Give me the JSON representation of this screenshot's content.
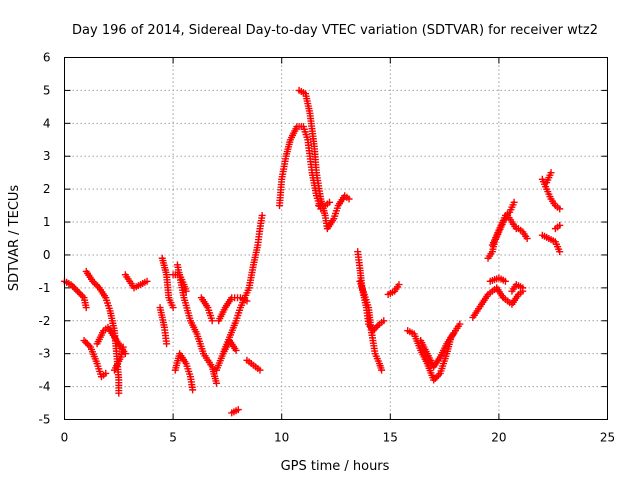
{
  "chart_data": {
    "type": "scatter",
    "title": "Day 196 of 2014, Sidereal Day-to-day VTEC variation (SDTVAR) for receiver wtz2",
    "xlabel": "GPS time / hours",
    "ylabel": "SDTVAR / TECUs",
    "xlim": [
      0,
      25
    ],
    "ylim": [
      -5,
      6
    ],
    "xticks": [
      0,
      5,
      10,
      15,
      20,
      25
    ],
    "yticks": [
      -5,
      -4,
      -3,
      -2,
      -1,
      0,
      1,
      2,
      3,
      4,
      5,
      6
    ],
    "grid": true,
    "marker": "plus",
    "series": [
      {
        "name": "SDTVAR",
        "color": "#ff0000",
        "segments": [
          [
            [
              0.0,
              -0.8
            ],
            [
              0.3,
              -0.9
            ],
            [
              0.6,
              -1.1
            ],
            [
              0.9,
              -1.3
            ],
            [
              1.0,
              -1.6
            ]
          ],
          [
            [
              0.9,
              -2.6
            ],
            [
              1.2,
              -2.8
            ],
            [
              1.5,
              -3.3
            ],
            [
              1.7,
              -3.7
            ],
            [
              1.9,
              -3.6
            ]
          ],
          [
            [
              1.0,
              -0.5
            ],
            [
              1.3,
              -0.8
            ],
            [
              1.6,
              -1.0
            ],
            [
              1.9,
              -1.3
            ],
            [
              2.1,
              -1.7
            ],
            [
              2.3,
              -2.3
            ],
            [
              2.4,
              -3.0
            ],
            [
              2.5,
              -3.8
            ],
            [
              2.5,
              -4.2
            ]
          ],
          [
            [
              1.5,
              -2.7
            ],
            [
              1.8,
              -2.3
            ],
            [
              2.0,
              -2.2
            ],
            [
              2.3,
              -2.5
            ],
            [
              2.6,
              -2.8
            ],
            [
              2.8,
              -3.0
            ]
          ],
          [
            [
              2.3,
              -3.5
            ],
            [
              2.6,
              -3.1
            ],
            [
              2.7,
              -2.8
            ]
          ],
          [
            [
              2.8,
              -0.6
            ],
            [
              3.0,
              -0.8
            ],
            [
              3.2,
              -1.0
            ],
            [
              3.5,
              -0.9
            ],
            [
              3.8,
              -0.8
            ]
          ],
          [
            [
              4.4,
              -1.6
            ],
            [
              4.6,
              -2.2
            ],
            [
              4.7,
              -2.7
            ]
          ],
          [
            [
              4.5,
              -0.1
            ],
            [
              4.7,
              -0.6
            ],
            [
              4.8,
              -1.3
            ],
            [
              5.0,
              -1.6
            ]
          ],
          [
            [
              5.0,
              -0.6
            ],
            [
              5.3,
              -0.6
            ],
            [
              5.5,
              -0.9
            ],
            [
              5.6,
              -1.1
            ]
          ],
          [
            [
              5.2,
              -0.3
            ],
            [
              5.5,
              -1.3
            ],
            [
              5.8,
              -2.0
            ],
            [
              6.1,
              -2.4
            ],
            [
              6.4,
              -3.0
            ],
            [
              6.8,
              -3.4
            ],
            [
              7.0,
              -3.9
            ]
          ],
          [
            [
              5.1,
              -3.5
            ],
            [
              5.3,
              -3.0
            ],
            [
              5.6,
              -3.3
            ],
            [
              5.8,
              -3.7
            ],
            [
              5.9,
              -4.1
            ]
          ],
          [
            [
              6.3,
              -1.3
            ],
            [
              6.6,
              -1.6
            ],
            [
              6.8,
              -2.0
            ]
          ],
          [
            [
              7.0,
              -3.5
            ],
            [
              7.3,
              -3.0
            ],
            [
              7.6,
              -2.6
            ],
            [
              7.9,
              -2.9
            ]
          ],
          [
            [
              7.1,
              -2.0
            ],
            [
              7.4,
              -1.6
            ],
            [
              7.7,
              -1.3
            ],
            [
              8.1,
              -1.3
            ],
            [
              8.4,
              -1.4
            ]
          ],
          [
            [
              7.3,
              -3.0
            ],
            [
              7.6,
              -2.5
            ],
            [
              7.9,
              -2.0
            ],
            [
              8.1,
              -1.6
            ],
            [
              8.5,
              -1.0
            ],
            [
              8.7,
              -0.3
            ],
            [
              8.9,
              0.3
            ],
            [
              9.0,
              0.8
            ],
            [
              9.1,
              1.2
            ]
          ],
          [
            [
              7.7,
              -4.8
            ],
            [
              8.0,
              -4.7
            ]
          ],
          [
            [
              8.4,
              -3.2
            ],
            [
              8.8,
              -3.4
            ],
            [
              9.0,
              -3.5
            ]
          ],
          [
            [
              9.9,
              1.5
            ],
            [
              10.0,
              2.3
            ],
            [
              10.2,
              3.0
            ],
            [
              10.4,
              3.5
            ],
            [
              10.7,
              3.9
            ],
            [
              11.0,
              3.9
            ],
            [
              11.2,
              3.5
            ],
            [
              11.3,
              3.0
            ],
            [
              11.4,
              2.5
            ],
            [
              11.6,
              1.8
            ],
            [
              11.8,
              1.4
            ]
          ],
          [
            [
              10.8,
              5.0
            ],
            [
              11.1,
              4.9
            ],
            [
              11.3,
              4.3
            ],
            [
              11.5,
              3.3
            ],
            [
              11.6,
              2.5
            ],
            [
              11.8,
              1.7
            ],
            [
              12.0,
              1.2
            ],
            [
              12.1,
              0.8
            ],
            [
              12.4,
              1.1
            ],
            [
              12.6,
              1.5
            ],
            [
              12.9,
              1.8
            ],
            [
              13.1,
              1.7
            ]
          ],
          [
            [
              11.7,
              1.5
            ],
            [
              12.0,
              1.5
            ],
            [
              12.2,
              1.6
            ]
          ],
          [
            [
              13.5,
              0.1
            ],
            [
              13.6,
              -0.4
            ],
            [
              13.7,
              -1.0
            ],
            [
              13.9,
              -1.6
            ],
            [
              14.0,
              -2.1
            ],
            [
              14.2,
              -2.3
            ],
            [
              14.5,
              -2.1
            ],
            [
              14.7,
              -2.0
            ]
          ],
          [
            [
              13.6,
              -0.8
            ],
            [
              13.8,
              -1.2
            ],
            [
              14.0,
              -1.6
            ],
            [
              14.1,
              -2.2
            ],
            [
              14.2,
              -2.6
            ],
            [
              14.3,
              -3.0
            ],
            [
              14.5,
              -3.3
            ],
            [
              14.6,
              -3.5
            ]
          ],
          [
            [
              14.9,
              -1.2
            ],
            [
              15.2,
              -1.1
            ],
            [
              15.4,
              -0.9
            ]
          ],
          [
            [
              15.8,
              -2.3
            ],
            [
              16.1,
              -2.4
            ],
            [
              16.4,
              -2.9
            ],
            [
              16.7,
              -3.3
            ],
            [
              17.0,
              -3.8
            ],
            [
              17.3,
              -3.6
            ],
            [
              17.6,
              -3.0
            ],
            [
              17.8,
              -2.5
            ],
            [
              18.2,
              -2.1
            ]
          ],
          [
            [
              16.4,
              -2.6
            ],
            [
              16.7,
              -3.0
            ],
            [
              17.0,
              -3.4
            ],
            [
              17.3,
              -3.1
            ],
            [
              17.6,
              -2.7
            ],
            [
              17.9,
              -2.4
            ]
          ],
          [
            [
              18.8,
              -1.9
            ],
            [
              19.2,
              -1.5
            ],
            [
              19.5,
              -1.2
            ],
            [
              19.9,
              -1.0
            ],
            [
              20.2,
              -1.3
            ],
            [
              20.6,
              -1.5
            ],
            [
              20.9,
              -1.2
            ],
            [
              21.1,
              -1.1
            ]
          ],
          [
            [
              19.6,
              -0.8
            ],
            [
              20.0,
              -0.7
            ],
            [
              20.3,
              -0.8
            ]
          ],
          [
            [
              20.6,
              -1.1
            ],
            [
              20.8,
              -0.9
            ],
            [
              21.1,
              -1.0
            ]
          ],
          [
            [
              19.5,
              -0.1
            ],
            [
              19.7,
              0.1
            ],
            [
              19.8,
              0.4
            ],
            [
              20.0,
              0.7
            ],
            [
              20.2,
              1.0
            ],
            [
              20.4,
              1.2
            ],
            [
              20.6,
              1.0
            ],
            [
              20.8,
              0.8
            ]
          ],
          [
            [
              19.7,
              0.3
            ],
            [
              19.9,
              0.6
            ],
            [
              20.1,
              0.9
            ],
            [
              20.3,
              1.2
            ],
            [
              20.5,
              1.3
            ],
            [
              20.7,
              1.6
            ]
          ],
          [
            [
              20.9,
              0.8
            ],
            [
              21.1,
              0.7
            ],
            [
              21.3,
              0.5
            ]
          ],
          [
            [
              22.0,
              0.6
            ],
            [
              22.3,
              0.5
            ],
            [
              22.6,
              0.4
            ],
            [
              22.8,
              0.1
            ]
          ],
          [
            [
              22.6,
              0.8
            ],
            [
              22.8,
              0.9
            ]
          ],
          [
            [
              22.0,
              2.3
            ],
            [
              22.2,
              2.0
            ],
            [
              22.4,
              1.7
            ],
            [
              22.6,
              1.5
            ],
            [
              22.8,
              1.4
            ]
          ],
          [
            [
              22.2,
              2.2
            ],
            [
              22.4,
              2.5
            ]
          ]
        ]
      }
    ]
  }
}
